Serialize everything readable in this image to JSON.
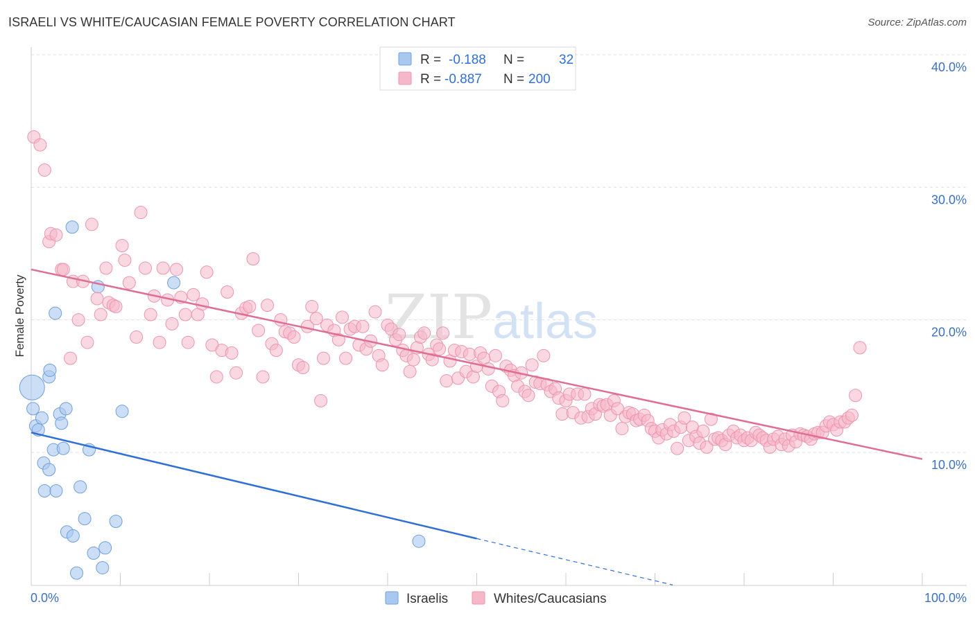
{
  "title": "ISRAELI VS WHITE/CAUCASIAN FEMALE POVERTY CORRELATION CHART",
  "source": "Source: ZipAtlas.com",
  "watermark": {
    "part1": "ZIP",
    "part2": "atlas"
  },
  "legend_top": {
    "rows": [
      {
        "r_label": "R =",
        "r_value": "-0.188",
        "n_label": "N =",
        "n_value": "32",
        "color": "#a9c8f0"
      },
      {
        "r_label": "R =",
        "r_value": "-0.887",
        "n_label": "N =",
        "n_value": "200",
        "color": "#f5b8c9"
      }
    ]
  },
  "chart_data": {
    "type": "scatter",
    "ylabel": "Female Poverty",
    "xlabel": "",
    "x_tick_labels": {
      "left": "0.0%",
      "right": "100.0%"
    },
    "y_tick_labels": [
      "10.0%",
      "20.0%",
      "30.0%",
      "40.0%"
    ],
    "y_ticks": [
      10,
      20,
      30,
      40
    ],
    "xlim": [
      0,
      100
    ],
    "ylim": [
      0,
      41
    ],
    "grid": true,
    "legend_position": "bottom",
    "series": [
      {
        "name": "Israelis",
        "color": "#a9c8f0",
        "stroke": "#6f9fe0",
        "line_color": "#2f6fd6",
        "trend": {
          "x0": 0,
          "y0": 11.5,
          "x1": 50,
          "y1": 3.5,
          "dash_to_x": 72,
          "dash_to_y": 0
        },
        "points": [
          [
            0.1,
            14.9
          ],
          [
            0.2,
            13.3
          ],
          [
            0.5,
            12.0
          ],
          [
            0.8,
            11.7
          ],
          [
            1.2,
            12.6
          ],
          [
            1.4,
            9.2
          ],
          [
            1.5,
            7.1
          ],
          [
            2.0,
            8.7
          ],
          [
            2.0,
            15.7
          ],
          [
            2.1,
            16.2
          ],
          [
            2.5,
            10.2
          ],
          [
            2.7,
            20.5
          ],
          [
            2.8,
            7.1
          ],
          [
            3.2,
            12.9
          ],
          [
            3.4,
            12.2
          ],
          [
            3.6,
            10.3
          ],
          [
            3.9,
            13.3
          ],
          [
            4.0,
            4.0
          ],
          [
            4.6,
            27.0
          ],
          [
            4.7,
            3.7
          ],
          [
            5.1,
            0.9
          ],
          [
            5.5,
            7.4
          ],
          [
            6.0,
            5.0
          ],
          [
            6.5,
            10.2
          ],
          [
            7.0,
            2.4
          ],
          [
            7.5,
            22.5
          ],
          [
            8.0,
            1.3
          ],
          [
            8.3,
            2.8
          ],
          [
            9.5,
            4.8
          ],
          [
            10.2,
            13.1
          ],
          [
            16.0,
            22.8
          ],
          [
            43.5,
            3.3
          ]
        ],
        "sizes": {
          "0": 18
        }
      },
      {
        "name": "Whites/Caucasians",
        "color": "#f5b8c9",
        "stroke": "#ee94ad",
        "line_color": "#e06d95",
        "trend": {
          "x0": 0,
          "y0": 23.8,
          "x1": 100,
          "y1": 9.5
        },
        "points": [
          [
            0.3,
            33.8
          ],
          [
            1.0,
            33.2
          ],
          [
            1.5,
            31.3
          ],
          [
            2.0,
            25.9
          ],
          [
            2.2,
            26.5
          ],
          [
            2.8,
            26.4
          ],
          [
            3.4,
            23.8
          ],
          [
            3.6,
            23.8
          ],
          [
            4.4,
            17.1
          ],
          [
            4.7,
            22.9
          ],
          [
            5.3,
            20.0
          ],
          [
            5.8,
            22.9
          ],
          [
            6.3,
            18.3
          ],
          [
            6.8,
            27.2
          ],
          [
            7.4,
            21.6
          ],
          [
            7.8,
            20.4
          ],
          [
            8.4,
            23.9
          ],
          [
            8.7,
            21.3
          ],
          [
            9.2,
            21.1
          ],
          [
            9.5,
            21.0
          ],
          [
            10.2,
            25.6
          ],
          [
            10.5,
            24.5
          ],
          [
            11.0,
            22.8
          ],
          [
            11.8,
            18.7
          ],
          [
            12.3,
            28.1
          ],
          [
            12.8,
            23.9
          ],
          [
            13.4,
            20.4
          ],
          [
            13.8,
            21.8
          ],
          [
            14.4,
            18.3
          ],
          [
            14.8,
            23.9
          ],
          [
            15.3,
            21.5
          ],
          [
            15.8,
            19.7
          ],
          [
            16.3,
            23.8
          ],
          [
            16.8,
            21.7
          ],
          [
            17.3,
            20.4
          ],
          [
            17.6,
            18.3
          ],
          [
            18.2,
            21.9
          ],
          [
            18.7,
            20.4
          ],
          [
            19.2,
            21.2
          ],
          [
            19.7,
            23.6
          ],
          [
            20.3,
            18.1
          ],
          [
            20.8,
            15.7
          ],
          [
            21.4,
            17.7
          ],
          [
            22.0,
            22.1
          ],
          [
            22.5,
            17.5
          ],
          [
            23.0,
            16.0
          ],
          [
            23.6,
            20.5
          ],
          [
            24.1,
            20.9
          ],
          [
            24.5,
            21.0
          ],
          [
            24.9,
            24.6
          ],
          [
            25.5,
            19.2
          ],
          [
            26.0,
            15.7
          ],
          [
            26.5,
            21.1
          ],
          [
            27.0,
            18.2
          ],
          [
            27.5,
            17.7
          ],
          [
            28.0,
            20.0
          ],
          [
            28.5,
            19.1
          ],
          [
            29.0,
            19.0
          ],
          [
            29.5,
            18.7
          ],
          [
            30.0,
            16.6
          ],
          [
            30.5,
            16.4
          ],
          [
            31.0,
            19.5
          ],
          [
            31.5,
            21.0
          ],
          [
            32.0,
            20.1
          ],
          [
            32.5,
            13.9
          ],
          [
            32.8,
            17.1
          ],
          [
            33.2,
            19.6
          ],
          [
            34.0,
            19.2
          ],
          [
            34.5,
            18.5
          ],
          [
            34.9,
            20.2
          ],
          [
            35.3,
            17.1
          ],
          [
            35.8,
            19.3
          ],
          [
            36.3,
            19.5
          ],
          [
            36.8,
            18.1
          ],
          [
            37.2,
            19.5
          ],
          [
            37.6,
            17.8
          ],
          [
            38.1,
            18.4
          ],
          [
            38.6,
            20.6
          ],
          [
            39.0,
            17.3
          ],
          [
            39.4,
            16.6
          ],
          [
            40.0,
            19.6
          ],
          [
            40.4,
            19.3
          ],
          [
            40.9,
            18.5
          ],
          [
            41.3,
            18.9
          ],
          [
            41.7,
            17.7
          ],
          [
            42.1,
            17.3
          ],
          [
            42.5,
            16.1
          ],
          [
            42.9,
            17.0
          ],
          [
            43.3,
            17.9
          ],
          [
            43.7,
            18.7
          ],
          [
            44.1,
            19.0
          ],
          [
            44.6,
            17.4
          ],
          [
            45.0,
            17.0
          ],
          [
            45.5,
            18.1
          ],
          [
            45.8,
            17.8
          ],
          [
            46.2,
            19.0
          ],
          [
            46.6,
            15.4
          ],
          [
            47.0,
            16.9
          ],
          [
            47.5,
            17.7
          ],
          [
            47.9,
            15.6
          ],
          [
            48.3,
            17.6
          ],
          [
            48.8,
            16.1
          ],
          [
            49.2,
            17.4
          ],
          [
            49.6,
            15.7
          ],
          [
            50.0,
            16.5
          ],
          [
            50.4,
            17.5
          ],
          [
            50.8,
            17.1
          ],
          [
            51.3,
            16.3
          ],
          [
            51.7,
            15.0
          ],
          [
            52.1,
            17.3
          ],
          [
            52.5,
            14.6
          ],
          [
            52.9,
            13.9
          ],
          [
            53.3,
            16.5
          ],
          [
            53.8,
            16.2
          ],
          [
            54.2,
            15.8
          ],
          [
            54.6,
            15.0
          ],
          [
            55.0,
            16.0
          ],
          [
            55.4,
            14.6
          ],
          [
            55.8,
            14.3
          ],
          [
            56.2,
            16.6
          ],
          [
            56.6,
            15.3
          ],
          [
            57.1,
            15.2
          ],
          [
            57.5,
            17.3
          ],
          [
            57.9,
            15.1
          ],
          [
            58.3,
            14.6
          ],
          [
            58.8,
            14.8
          ],
          [
            59.2,
            14.1
          ],
          [
            59.6,
            12.9
          ],
          [
            60.0,
            13.9
          ],
          [
            60.4,
            14.4
          ],
          [
            60.8,
            13.0
          ],
          [
            61.3,
            14.4
          ],
          [
            61.7,
            12.6
          ],
          [
            62.1,
            14.4
          ],
          [
            62.5,
            12.7
          ],
          [
            62.9,
            13.3
          ],
          [
            63.3,
            12.9
          ],
          [
            63.8,
            13.6
          ],
          [
            64.2,
            13.5
          ],
          [
            64.6,
            13.6
          ],
          [
            65.0,
            12.8
          ],
          [
            65.4,
            13.9
          ],
          [
            65.8,
            13.3
          ],
          [
            66.3,
            11.8
          ],
          [
            66.7,
            12.7
          ],
          [
            67.1,
            13.0
          ],
          [
            67.5,
            12.9
          ],
          [
            67.9,
            12.4
          ],
          [
            68.3,
            12.5
          ],
          [
            68.8,
            12.8
          ],
          [
            69.2,
            12.4
          ],
          [
            69.6,
            11.8
          ],
          [
            70.0,
            11.6
          ],
          [
            70.4,
            11.1
          ],
          [
            70.8,
            11.7
          ],
          [
            71.3,
            11.4
          ],
          [
            71.7,
            12.1
          ],
          [
            72.1,
            11.6
          ],
          [
            72.5,
            10.3
          ],
          [
            72.9,
            11.9
          ],
          [
            73.3,
            12.6
          ],
          [
            73.8,
            10.9
          ],
          [
            74.2,
            11.9
          ],
          [
            74.6,
            11.2
          ],
          [
            75.0,
            10.7
          ],
          [
            75.4,
            11.6
          ],
          [
            75.8,
            10.4
          ],
          [
            76.3,
            12.5
          ],
          [
            76.7,
            11.0
          ],
          [
            77.1,
            11.1
          ],
          [
            77.5,
            10.9
          ],
          [
            77.9,
            10.6
          ],
          [
            78.3,
            11.3
          ],
          [
            78.8,
            11.6
          ],
          [
            79.2,
            11.1
          ],
          [
            79.6,
            11.3
          ],
          [
            80.0,
            10.9
          ],
          [
            80.4,
            11.1
          ],
          [
            80.8,
            10.9
          ],
          [
            81.3,
            11.5
          ],
          [
            81.7,
            11.3
          ],
          [
            82.1,
            11.1
          ],
          [
            82.5,
            10.9
          ],
          [
            82.9,
            10.4
          ],
          [
            83.3,
            11.0
          ],
          [
            83.8,
            11.2
          ],
          [
            84.2,
            10.6
          ],
          [
            84.6,
            11.0
          ],
          [
            85.0,
            10.5
          ],
          [
            85.4,
            11.3
          ],
          [
            85.8,
            10.8
          ],
          [
            86.3,
            11.4
          ],
          [
            86.7,
            11.3
          ],
          [
            87.1,
            11.2
          ],
          [
            87.5,
            11.0
          ],
          [
            87.9,
            11.4
          ],
          [
            88.3,
            11.5
          ],
          [
            88.8,
            11.5
          ],
          [
            89.2,
            12.0
          ],
          [
            89.6,
            12.3
          ],
          [
            90.0,
            12.1
          ],
          [
            90.4,
            11.7
          ],
          [
            90.8,
            12.3
          ],
          [
            91.3,
            12.3
          ],
          [
            91.7,
            12.6
          ],
          [
            92.1,
            12.8
          ],
          [
            92.5,
            14.3
          ],
          [
            93.0,
            17.9
          ]
        ]
      }
    ]
  },
  "bottom_legend": [
    {
      "label": "Israelis",
      "color": "#a9c8f0"
    },
    {
      "label": "Whites/Caucasians",
      "color": "#f5b8c9"
    }
  ]
}
